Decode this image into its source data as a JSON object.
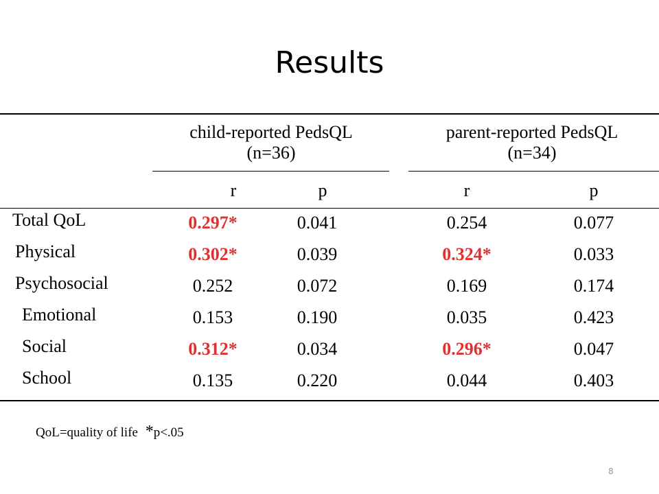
{
  "slide": {
    "title": "Results",
    "page_number": "8",
    "sig_color": "#e03131"
  },
  "table": {
    "groups": [
      {
        "line1": "child-reported PedsQL",
        "line2": "(n=36)"
      },
      {
        "line1": "parent-reported PedsQL",
        "line2": "(n=34)"
      }
    ],
    "subheaders": [
      "r",
      "p",
      "r",
      "p"
    ],
    "rows": [
      {
        "label": "Total QoL",
        "values": [
          "0.297*",
          "0.041",
          "0.254",
          "0.077"
        ]
      },
      {
        "label": "Physical",
        "values": [
          "0.302*",
          "0.039",
          "0.324*",
          "0.033"
        ]
      },
      {
        "label": "Psychosocial",
        "values": [
          "0.252",
          "0.072",
          "0.169",
          "0.174"
        ]
      },
      {
        "label": "Emotional",
        "values": [
          "0.153",
          "0.190",
          "0.035",
          "0.423"
        ]
      },
      {
        "label": "Social",
        "values": [
          "0.312*",
          "0.034",
          "0.296*",
          "0.047"
        ]
      },
      {
        "label": "School",
        "values": [
          "0.135",
          "0.220",
          "0.044",
          "0.403"
        ]
      }
    ],
    "footnote_abbrev": "QoL=quality of life",
    "footnote_star": "*",
    "footnote_sig": "p<.05"
  }
}
